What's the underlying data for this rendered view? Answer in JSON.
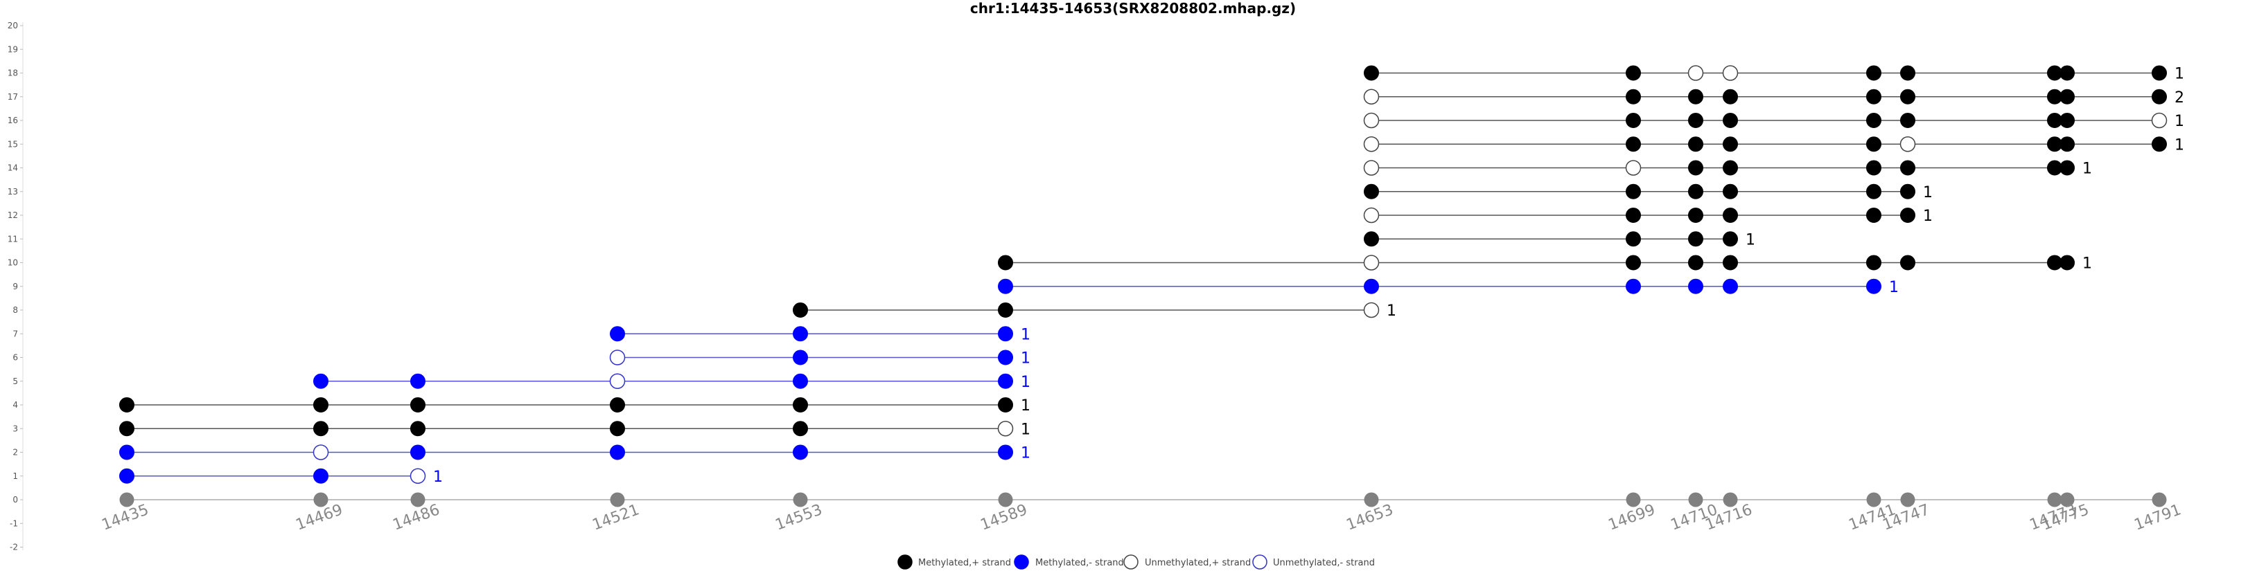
{
  "chart_data": {
    "type": "scatter",
    "title": "chr1:14435-14653(SRX8208802.mhap.gz)",
    "xlabel": "",
    "ylabel": "",
    "ylim": [
      -2,
      20
    ],
    "y_ticks": [
      -2,
      -1,
      0,
      1,
      2,
      3,
      4,
      5,
      6,
      7,
      8,
      9,
      10,
      11,
      12,
      13,
      14,
      15,
      16,
      17,
      18,
      19,
      20
    ],
    "positions": [
      14435,
      14469,
      14486,
      14521,
      14553,
      14589,
      14653,
      14699,
      14710,
      14716,
      14741,
      14747,
      14773,
      14775,
      14791
    ],
    "tick_labels": [
      "14435",
      "14469",
      "14486",
      "14521",
      "14553",
      "14589",
      "14653",
      "14699",
      "14710",
      "14716",
      "14741",
      "14747",
      "14773",
      "14775",
      "14791"
    ],
    "legend": {
      "placement": "bottom-center",
      "entries": [
        "Methylated,+ strand",
        "Methylated,- strand",
        "Unmethylated,+ strand",
        "Unmethylated,- strand"
      ]
    },
    "reads": [
      {
        "y": 1,
        "strand": "-",
        "count": "1",
        "sites": [
          [
            14435,
            1
          ],
          [
            14469,
            1
          ],
          [
            14486,
            0
          ]
        ]
      },
      {
        "y": 2,
        "strand": "-",
        "count": "1",
        "sites": [
          [
            14435,
            1
          ],
          [
            14469,
            0
          ],
          [
            14486,
            1
          ],
          [
            14521,
            1
          ],
          [
            14553,
            1
          ],
          [
            14589,
            1
          ]
        ]
      },
      {
        "y": 3,
        "strand": "+",
        "count": "1",
        "sites": [
          [
            14435,
            1
          ],
          [
            14469,
            1
          ],
          [
            14486,
            1
          ],
          [
            14521,
            1
          ],
          [
            14553,
            1
          ],
          [
            14589,
            0
          ]
        ]
      },
      {
        "y": 4,
        "strand": "+",
        "count": "1",
        "sites": [
          [
            14435,
            1
          ],
          [
            14469,
            1
          ],
          [
            14486,
            1
          ],
          [
            14521,
            1
          ],
          [
            14553,
            1
          ],
          [
            14589,
            1
          ]
        ]
      },
      {
        "y": 5,
        "strand": "-",
        "count": "1",
        "sites": [
          [
            14469,
            1
          ],
          [
            14486,
            1
          ],
          [
            14521,
            0
          ],
          [
            14553,
            1
          ],
          [
            14589,
            1
          ]
        ]
      },
      {
        "y": 6,
        "strand": "-",
        "count": "1",
        "sites": [
          [
            14521,
            0
          ],
          [
            14553,
            1
          ],
          [
            14589,
            1
          ]
        ]
      },
      {
        "y": 7,
        "strand": "-",
        "count": "1",
        "sites": [
          [
            14521,
            1
          ],
          [
            14553,
            1
          ],
          [
            14589,
            1
          ]
        ]
      },
      {
        "y": 8,
        "strand": "+",
        "count": "1",
        "sites": [
          [
            14553,
            1
          ],
          [
            14589,
            1
          ],
          [
            14653,
            0
          ]
        ]
      },
      {
        "y": 9,
        "strand": "-",
        "count": "1",
        "sites": [
          [
            14589,
            1
          ],
          [
            14653,
            1
          ],
          [
            14699,
            1
          ],
          [
            14710,
            1
          ],
          [
            14716,
            1
          ],
          [
            14741,
            1
          ]
        ]
      },
      {
        "y": 10,
        "strand": "+",
        "count": "1",
        "sites": [
          [
            14589,
            1
          ],
          [
            14653,
            0
          ],
          [
            14699,
            1
          ],
          [
            14710,
            1
          ],
          [
            14716,
            1
          ],
          [
            14741,
            1
          ],
          [
            14747,
            1
          ],
          [
            14773,
            1
          ],
          [
            14775,
            1
          ]
        ]
      },
      {
        "y": 11,
        "strand": "+",
        "count": "1",
        "sites": [
          [
            14653,
            1
          ],
          [
            14699,
            1
          ],
          [
            14710,
            1
          ],
          [
            14716,
            1
          ]
        ]
      },
      {
        "y": 12,
        "strand": "+",
        "count": "1",
        "sites": [
          [
            14653,
            0
          ],
          [
            14699,
            1
          ],
          [
            14710,
            1
          ],
          [
            14716,
            1
          ],
          [
            14741,
            1
          ],
          [
            14747,
            1
          ]
        ]
      },
      {
        "y": 13,
        "strand": "+",
        "count": "1",
        "sites": [
          [
            14653,
            1
          ],
          [
            14699,
            1
          ],
          [
            14710,
            1
          ],
          [
            14716,
            1
          ],
          [
            14741,
            1
          ],
          [
            14747,
            1
          ]
        ]
      },
      {
        "y": 14,
        "strand": "+",
        "count": "1",
        "sites": [
          [
            14653,
            0
          ],
          [
            14699,
            0
          ],
          [
            14710,
            1
          ],
          [
            14716,
            1
          ],
          [
            14741,
            1
          ],
          [
            14747,
            1
          ],
          [
            14773,
            1
          ],
          [
            14775,
            1
          ]
        ]
      },
      {
        "y": 15,
        "strand": "+",
        "count": "1",
        "sites": [
          [
            14653,
            0
          ],
          [
            14699,
            1
          ],
          [
            14710,
            1
          ],
          [
            14716,
            1
          ],
          [
            14741,
            1
          ],
          [
            14747,
            0
          ],
          [
            14773,
            1
          ],
          [
            14775,
            1
          ],
          [
            14791,
            1
          ]
        ]
      },
      {
        "y": 16,
        "strand": "+",
        "count": "1",
        "sites": [
          [
            14653,
            0
          ],
          [
            14699,
            1
          ],
          [
            14710,
            1
          ],
          [
            14716,
            1
          ],
          [
            14741,
            1
          ],
          [
            14747,
            1
          ],
          [
            14773,
            1
          ],
          [
            14775,
            1
          ],
          [
            14791,
            0
          ]
        ]
      },
      {
        "y": 17,
        "strand": "+",
        "count": "2",
        "sites": [
          [
            14653,
            0
          ],
          [
            14699,
            1
          ],
          [
            14710,
            1
          ],
          [
            14716,
            1
          ],
          [
            14741,
            1
          ],
          [
            14747,
            1
          ],
          [
            14773,
            1
          ],
          [
            14775,
            1
          ],
          [
            14791,
            1
          ]
        ]
      },
      {
        "y": 18,
        "strand": "+",
        "count": "1",
        "sites": [
          [
            14653,
            1
          ],
          [
            14699,
            1
          ],
          [
            14710,
            0
          ],
          [
            14716,
            0
          ],
          [
            14741,
            1
          ],
          [
            14747,
            1
          ],
          [
            14773,
            1
          ],
          [
            14775,
            1
          ],
          [
            14791,
            1
          ]
        ]
      }
    ],
    "colors": {
      "plus_strand": "#000000",
      "minus_strand": "#0000ff",
      "baseline": "#808080",
      "plus_line": "#555555",
      "minus_line": "#5555cc",
      "axis": "#cccccc"
    }
  }
}
